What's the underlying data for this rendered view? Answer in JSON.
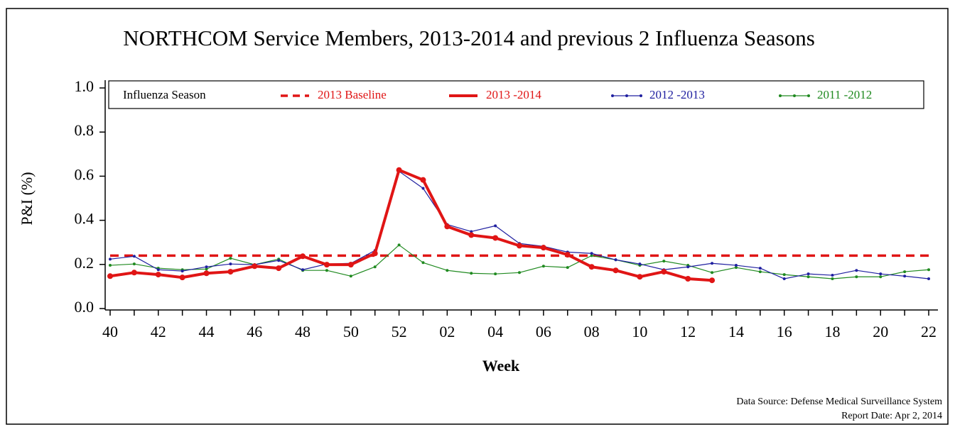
{
  "chart_data": {
    "type": "line",
    "title": "NORTHCOM Service Members, 2013-2014 and previous 2 Influenza Seasons",
    "x_label": "Week",
    "y_label": "P&I (%)",
    "legend_title": "Influenza Season",
    "source": "Data Source: Defense Medical Surveillance System",
    "report_date": "Report Date: Apr 2, 2014",
    "categories": [
      "40",
      null,
      "42",
      null,
      "44",
      null,
      "46",
      null,
      "48",
      null,
      "50",
      null,
      "52",
      null,
      "02",
      null,
      "04",
      null,
      "06",
      null,
      "08",
      null,
      "10",
      null,
      "12",
      null,
      "14",
      null,
      "16",
      null,
      "18",
      null,
      "20",
      null,
      "22"
    ],
    "baseline": {
      "name": "2013 Baseline",
      "value": 0.24,
      "color": "#e01515"
    },
    "series": [
      {
        "name": "2013 -2014",
        "color": "#e01515",
        "values": [
          0.147,
          0.163,
          0.154,
          0.141,
          0.16,
          0.167,
          0.192,
          0.183,
          0.237,
          0.199,
          0.199,
          0.25,
          0.628,
          0.583,
          0.372,
          0.333,
          0.32,
          0.285,
          0.276,
          0.244,
          0.189,
          0.173,
          0.144,
          0.167,
          0.135,
          0.128,
          null,
          null,
          null,
          null,
          null,
          null,
          null,
          null,
          null
        ]
      },
      {
        "name": "2012 -2013",
        "color": "#2020a0",
        "values": [
          0.224,
          0.237,
          0.176,
          0.17,
          0.189,
          0.202,
          0.199,
          0.218,
          0.176,
          0.202,
          0.205,
          0.263,
          0.622,
          0.545,
          0.381,
          0.349,
          0.375,
          0.295,
          0.282,
          0.256,
          0.25,
          0.221,
          0.202,
          0.176,
          0.189,
          0.205,
          0.196,
          0.183,
          0.135,
          0.157,
          0.151,
          0.173,
          0.157,
          0.147,
          0.135
        ]
      },
      {
        "name": "2011 -2012",
        "color": "#208a20",
        "values": [
          0.196,
          0.202,
          0.183,
          0.176,
          0.179,
          0.228,
          0.199,
          0.224,
          0.173,
          0.173,
          0.147,
          0.189,
          0.288,
          0.208,
          0.173,
          0.16,
          0.157,
          0.163,
          0.192,
          0.186,
          0.24,
          0.221,
          0.196,
          0.215,
          0.196,
          0.163,
          0.186,
          0.167,
          0.154,
          0.144,
          0.135,
          0.144,
          0.144,
          0.167,
          0.176
        ]
      }
    ],
    "ylim": [
      0,
      1
    ],
    "yticks": [
      {
        "value": 0,
        "label": "0.0"
      },
      0.2,
      0.4,
      0.6,
      0.8,
      {
        "value": 1,
        "label": "1.0"
      }
    ]
  }
}
